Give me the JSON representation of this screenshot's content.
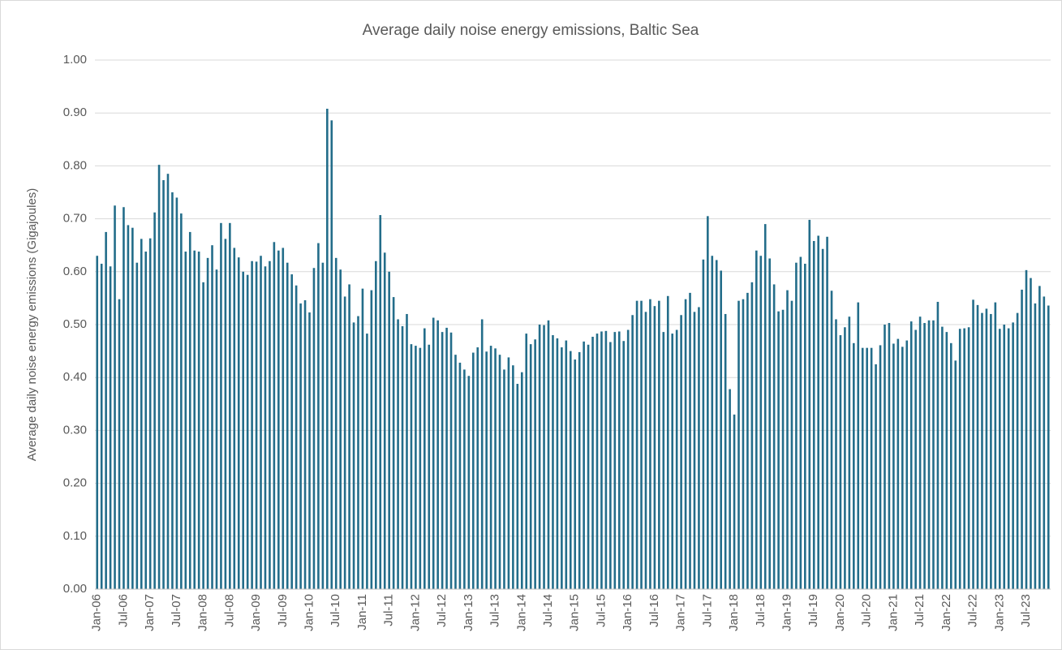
{
  "chart_data": {
    "type": "bar",
    "title": "Average daily noise energy emissions, Baltic Sea",
    "y_label": "Average daily noise energy emissions (Gigajoules)",
    "color": "#236d8a",
    "grid": true,
    "ylim": [
      0,
      1
    ],
    "yticks": [
      {
        "value": 0,
        "label": "0.00"
      },
      {
        "value": 0.1,
        "label": "0.10"
      },
      {
        "value": 0.2,
        "label": "0.20"
      },
      {
        "value": 0.3,
        "label": "0.30"
      },
      {
        "value": 0.4,
        "label": "0.40"
      },
      {
        "value": 0.5,
        "label": "0.50"
      },
      {
        "value": 0.6,
        "label": "0.60"
      },
      {
        "value": 0.7,
        "label": "0.70"
      },
      {
        "value": 0.8,
        "label": "0.80"
      },
      {
        "value": 0.9,
        "label": "0.90"
      },
      {
        "value": 1,
        "label": "1.00"
      }
    ],
    "categories": [
      "Jan-06",
      null,
      null,
      null,
      null,
      null,
      "Jul-06",
      null,
      null,
      null,
      null,
      null,
      "Jan-07",
      null,
      null,
      null,
      null,
      null,
      "Jul-07",
      null,
      null,
      null,
      null,
      null,
      "Jan-08",
      null,
      null,
      null,
      null,
      null,
      "Jul-08",
      null,
      null,
      null,
      null,
      null,
      "Jan-09",
      null,
      null,
      null,
      null,
      null,
      "Jul-09",
      null,
      null,
      null,
      null,
      null,
      "Jan-10",
      null,
      null,
      null,
      null,
      null,
      "Jul-10",
      null,
      null,
      null,
      null,
      null,
      "Jan-11",
      null,
      null,
      null,
      null,
      null,
      "Jul-11",
      null,
      null,
      null,
      null,
      null,
      "Jan-12",
      null,
      null,
      null,
      null,
      null,
      "Jul-12",
      null,
      null,
      null,
      null,
      null,
      "Jan-13",
      null,
      null,
      null,
      null,
      null,
      "Jul-13",
      null,
      null,
      null,
      null,
      null,
      "Jan-14",
      null,
      null,
      null,
      null,
      null,
      "Jul-14",
      null,
      null,
      null,
      null,
      null,
      "Jan-15",
      null,
      null,
      null,
      null,
      null,
      "Jul-15",
      null,
      null,
      null,
      null,
      null,
      "Jan-16",
      null,
      null,
      null,
      null,
      null,
      "Jul-16",
      null,
      null,
      null,
      null,
      null,
      "Jan-17",
      null,
      null,
      null,
      null,
      null,
      "Jul-17",
      null,
      null,
      null,
      null,
      null,
      "Jan-18",
      null,
      null,
      null,
      null,
      null,
      "Jul-18",
      null,
      null,
      null,
      null,
      null,
      "Jan-19",
      null,
      null,
      null,
      null,
      null,
      "Jul-19",
      null,
      null,
      null,
      null,
      null,
      "Jan-20",
      null,
      null,
      null,
      null,
      null,
      "Jul-20",
      null,
      null,
      null,
      null,
      null,
      "Jan-21",
      null,
      null,
      null,
      null,
      null,
      "Jul-21",
      null,
      null,
      null,
      null,
      null,
      "Jan-22",
      null,
      null,
      null,
      null,
      null,
      "Jul-22",
      null,
      null,
      null,
      null,
      null,
      "Jan-23",
      null,
      null,
      null,
      null,
      null,
      "Jul-23",
      null,
      null,
      null,
      null,
      null
    ],
    "values": [
      0.63,
      0.615,
      0.675,
      0.61,
      0.725,
      0.548,
      0.722,
      0.688,
      0.683,
      0.617,
      0.662,
      0.638,
      0.663,
      0.712,
      0.802,
      0.773,
      0.785,
      0.75,
      0.74,
      0.71,
      0.638,
      0.675,
      0.64,
      0.638,
      0.58,
      0.626,
      0.65,
      0.604,
      0.692,
      0.662,
      0.692,
      0.645,
      0.627,
      0.6,
      0.594,
      0.62,
      0.619,
      0.63,
      0.61,
      0.62,
      0.656,
      0.64,
      0.645,
      0.617,
      0.595,
      0.574,
      0.54,
      0.546,
      0.523,
      0.607,
      0.654,
      0.617,
      0.908,
      0.886,
      0.626,
      0.604,
      0.553,
      0.576,
      0.504,
      0.516,
      0.568,
      0.483,
      0.565,
      0.62,
      0.707,
      0.636,
      0.6,
      0.552,
      0.51,
      0.497,
      0.52,
      0.463,
      0.46,
      0.456,
      0.493,
      0.462,
      0.513,
      0.508,
      0.486,
      0.494,
      0.485,
      0.443,
      0.428,
      0.415,
      0.403,
      0.447,
      0.457,
      0.51,
      0.449,
      0.46,
      0.455,
      0.443,
      0.415,
      0.438,
      0.423,
      0.388,
      0.41,
      0.483,
      0.463,
      0.472,
      0.5,
      0.499,
      0.508,
      0.48,
      0.474,
      0.457,
      0.47,
      0.45,
      0.434,
      0.448,
      0.468,
      0.462,
      0.477,
      0.483,
      0.487,
      0.488,
      0.467,
      0.486,
      0.487,
      0.469,
      0.49,
      0.518,
      0.545,
      0.545,
      0.524,
      0.548,
      0.535,
      0.545,
      0.486,
      0.554,
      0.483,
      0.49,
      0.518,
      0.548,
      0.56,
      0.524,
      0.533,
      0.623,
      0.705,
      0.63,
      0.622,
      0.602,
      0.52,
      0.378,
      0.33,
      0.545,
      0.548,
      0.56,
      0.58,
      0.64,
      0.63,
      0.69,
      0.625,
      0.576,
      0.525,
      0.528,
      0.565,
      0.545,
      0.617,
      0.628,
      0.615,
      0.698,
      0.658,
      0.668,
      0.643,
      0.666,
      0.564,
      0.51,
      0.48,
      0.495,
      0.515,
      0.465,
      0.542,
      0.456,
      0.456,
      0.456,
      0.425,
      0.461,
      0.5,
      0.503,
      0.464,
      0.473,
      0.458,
      0.47,
      0.506,
      0.49,
      0.515,
      0.503,
      0.508,
      0.508,
      0.543,
      0.496,
      0.486,
      0.465,
      0.432,
      0.492,
      0.493,
      0.495,
      0.547,
      0.537,
      0.522,
      0.53,
      0.52,
      0.542,
      0.492,
      0.5,
      0.493,
      0.504,
      0.522,
      0.566,
      0.603,
      0.588,
      0.54,
      0.573,
      0.553,
      0.536
    ]
  }
}
